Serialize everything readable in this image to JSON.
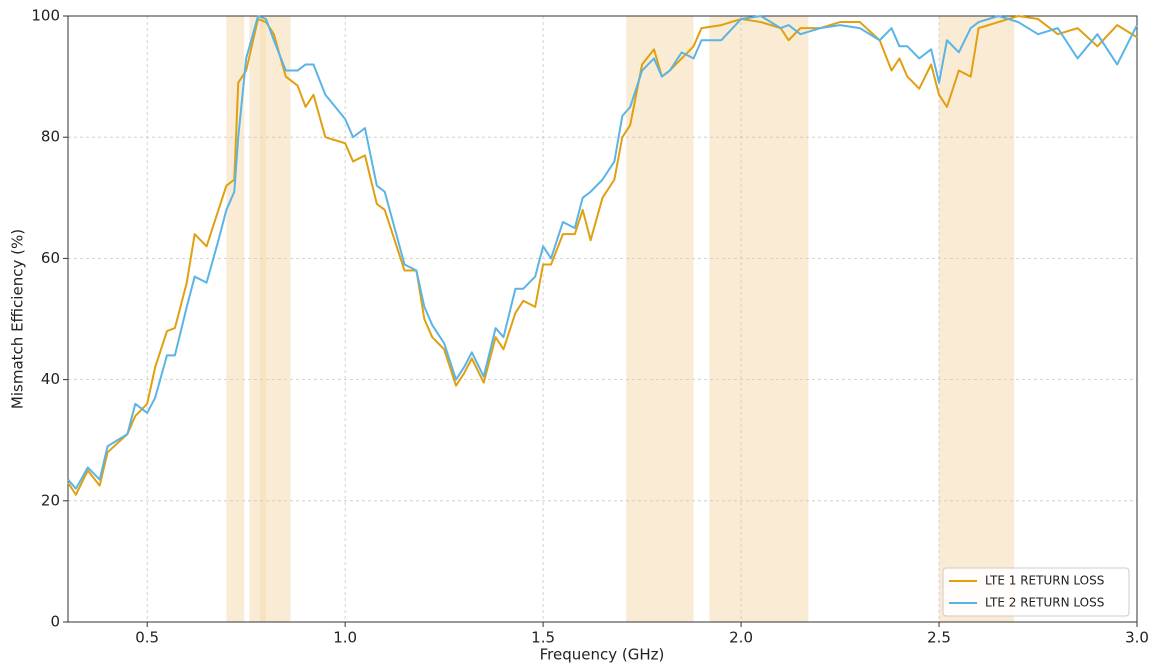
{
  "chart_data": {
    "type": "line",
    "xlabel": "Frequency (GHz)",
    "ylabel": "Mismatch Efficiency (%)",
    "x": [
      0.3,
      0.32,
      0.35,
      0.38,
      0.4,
      0.45,
      0.47,
      0.5,
      0.52,
      0.55,
      0.57,
      0.6,
      0.62,
      0.65,
      0.68,
      0.7,
      0.72,
      0.73,
      0.75,
      0.78,
      0.8,
      0.82,
      0.85,
      0.88,
      0.9,
      0.92,
      0.95,
      1.0,
      1.02,
      1.05,
      1.08,
      1.1,
      1.15,
      1.18,
      1.2,
      1.22,
      1.25,
      1.28,
      1.3,
      1.32,
      1.35,
      1.38,
      1.4,
      1.43,
      1.45,
      1.48,
      1.5,
      1.52,
      1.55,
      1.58,
      1.6,
      1.62,
      1.65,
      1.68,
      1.7,
      1.72,
      1.75,
      1.78,
      1.8,
      1.82,
      1.85,
      1.88,
      1.9,
      1.95,
      2.0,
      2.05,
      2.1,
      2.12,
      2.15,
      2.2,
      2.25,
      2.3,
      2.35,
      2.38,
      2.4,
      2.42,
      2.45,
      2.48,
      2.5,
      2.52,
      2.55,
      2.58,
      2.6,
      2.65,
      2.7,
      2.75,
      2.8,
      2.85,
      2.9,
      2.95,
      3.0
    ],
    "series": [
      {
        "name": "LTE 1 RETURN LOSS",
        "color": "#e0a010",
        "values": [
          23,
          21,
          25,
          22.5,
          28,
          31,
          34,
          36,
          42,
          48,
          48.5,
          56,
          64,
          62,
          68,
          72,
          73,
          89,
          91,
          99.5,
          99,
          97,
          90,
          88.5,
          85,
          87,
          80,
          79,
          76,
          77,
          69,
          68,
          58,
          58,
          50,
          47,
          45,
          39,
          41,
          43.5,
          39.5,
          47,
          45,
          51,
          53,
          52,
          59,
          59,
          64,
          64,
          68,
          63,
          70,
          73,
          80,
          82,
          92,
          94.5,
          90,
          91,
          93,
          95,
          98,
          98.5,
          99.5,
          99,
          98,
          96,
          98,
          98,
          99,
          99,
          96,
          91,
          93,
          90,
          88,
          92,
          87,
          85,
          91,
          90,
          98,
          99,
          100,
          99.5,
          97,
          98,
          95,
          98.5,
          96.5
        ]
      },
      {
        "name": "LTE 2 RETURN LOSS",
        "color": "#5ab4e5",
        "values": [
          23.5,
          22,
          25.5,
          23.5,
          29,
          31,
          36,
          34.5,
          37,
          44,
          44,
          52,
          57,
          56,
          63,
          68,
          71,
          80,
          93,
          100,
          99.5,
          96,
          91,
          91,
          92,
          92,
          87,
          83,
          80,
          81.5,
          72,
          71,
          59,
          58,
          52,
          49,
          46,
          40,
          42,
          44.5,
          40.5,
          48.5,
          47,
          55,
          55,
          57,
          62,
          60,
          66,
          65,
          70,
          71,
          73,
          76,
          83.5,
          85,
          91,
          93,
          90,
          91,
          94,
          93,
          96,
          96,
          99.5,
          100,
          98,
          98.5,
          97,
          98,
          98.5,
          98,
          96,
          98,
          95,
          95,
          93,
          94.5,
          89,
          96,
          94,
          98,
          99,
          100,
          99,
          97,
          98,
          93,
          97,
          92,
          98.5
        ]
      }
    ],
    "bands": [
      [
        0.7,
        0.745
      ],
      [
        0.758,
        0.862
      ],
      [
        0.785,
        0.8
      ],
      [
        1.71,
        1.88
      ],
      [
        1.92,
        2.17
      ],
      [
        2.5,
        2.69
      ]
    ],
    "band_color": "#f5ddb0",
    "xlim": [
      0.3,
      3.0
    ],
    "ylim": [
      0,
      100
    ],
    "xticks": [
      0.5,
      {
        "value": 1,
        "label": "1.0"
      },
      1.5,
      {
        "value": 2,
        "label": "2.0"
      },
      2.5,
      {
        "value": 3,
        "label": "3.0"
      }
    ],
    "yticks": [
      0,
      20,
      40,
      60,
      80,
      100
    ],
    "grid": true,
    "legend": "lower right"
  }
}
